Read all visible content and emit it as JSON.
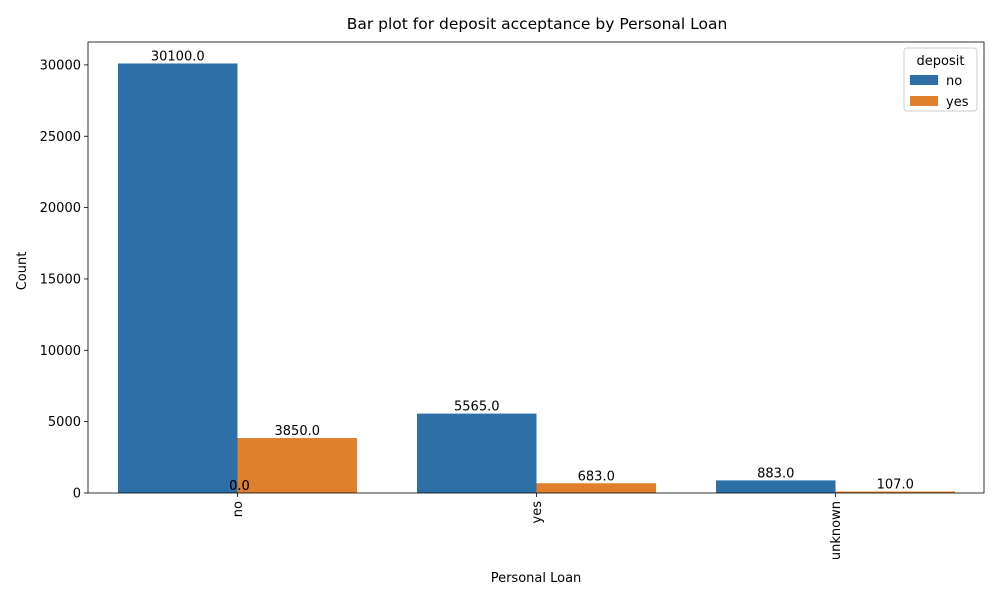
{
  "chart_data": {
    "type": "bar",
    "title": "Bar plot for deposit acceptance by Personal Loan",
    "xlabel": "Personal Loan",
    "ylabel": "Count",
    "categories": [
      "no",
      "yes",
      "unknown"
    ],
    "series": [
      {
        "name": "no",
        "color": "#2d70a8",
        "values": [
          30100,
          5565,
          883
        ],
        "labels": [
          "30100.0",
          "5565.0",
          "883.0"
        ]
      },
      {
        "name": "yes",
        "color": "#e0802d",
        "values": [
          3850,
          683,
          107
        ],
        "labels": [
          "3850.0",
          "683.0",
          "107.0"
        ]
      }
    ],
    "extra_labels": [
      {
        "text": "0.0",
        "category": "no",
        "value": 0
      },
      {
        "text": "0.0",
        "category": "no",
        "value": 0
      }
    ],
    "ylim": [
      0,
      31605
    ],
    "yticks": [
      0,
      5000,
      10000,
      15000,
      20000,
      25000,
      30000
    ],
    "x_tick_rotation": 90,
    "grid": false,
    "legend": {
      "title": "deposit",
      "position": "top-right",
      "entries": [
        "no",
        "yes"
      ]
    }
  }
}
